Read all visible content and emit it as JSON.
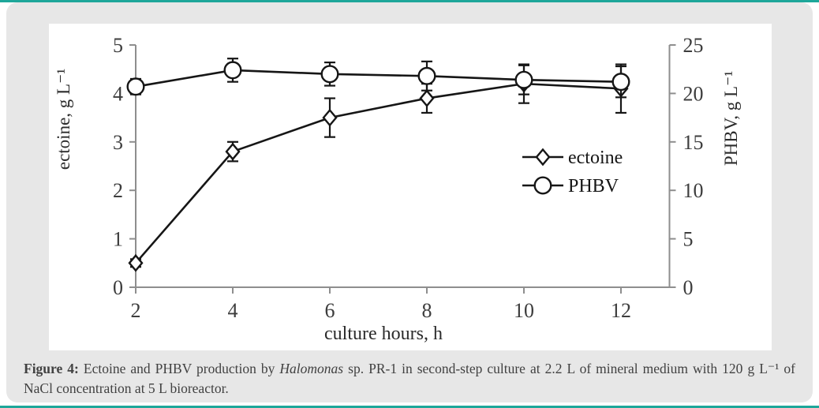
{
  "page": {
    "accent_color": "#1ea79a",
    "panel_color": "#e7e7e7",
    "caption": {
      "prefix": "Figure 4:",
      "body_before_italic": " Ectoine and PHBV production by ",
      "italic": "Halomonas",
      "body_after_italic": " sp. PR-1 in second-step culture at 2.2 L of mineral medium with 120 g L⁻¹ of NaCl concentration at 5 L bioreactor."
    }
  },
  "chart_data": {
    "type": "line",
    "title": "",
    "x": [
      2,
      4,
      6,
      8,
      10,
      12
    ],
    "xlabel": "culture hours, h",
    "x_ticks": [
      2,
      4,
      6,
      8,
      10,
      12
    ],
    "x_axis_range": [
      2,
      13
    ],
    "left_axis": {
      "label": "ectoine, g L⁻¹",
      "range": [
        0,
        5
      ],
      "ticks": [
        0,
        1,
        2,
        3,
        4,
        5
      ]
    },
    "right_axis": {
      "label": "PHBV, g L⁻¹",
      "range": [
        0,
        25
      ],
      "ticks": [
        0,
        5,
        10,
        15,
        20,
        25
      ]
    },
    "series": [
      {
        "name": "ectoine",
        "axis": "left",
        "marker": "diamond",
        "values": [
          0.5,
          2.8,
          3.5,
          3.9,
          4.2,
          4.1
        ],
        "errors": [
          0.08,
          0.2,
          0.4,
          0.3,
          0.4,
          0.5
        ]
      },
      {
        "name": "PHBV",
        "axis": "right",
        "marker": "circle",
        "values": [
          20.7,
          22.4,
          22.0,
          21.8,
          21.4,
          21.2
        ],
        "errors": [
          0.8,
          1.2,
          1.2,
          1.5,
          1.5,
          1.6
        ]
      }
    ],
    "legend": {
      "entries": [
        "ectoine",
        "PHBV"
      ],
      "position": "middle-right"
    },
    "grid": false,
    "error_bars": true,
    "colors": {
      "series": "#161616",
      "axis": "#8e8e8e",
      "tick_text": "#3d3d3d",
      "marker_fill": "#ffffff"
    }
  }
}
